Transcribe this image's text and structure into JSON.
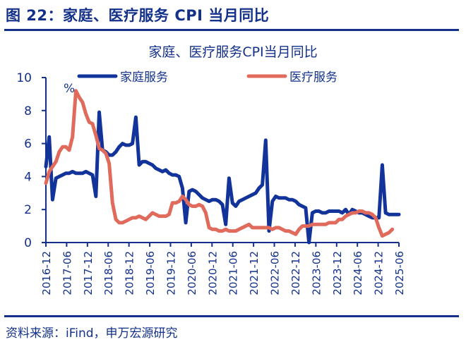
{
  "figure": {
    "title": "图 22：家庭、医疗服务 CPI 当月同比",
    "source": "资料来源：iFind，申万宏源研究"
  },
  "colors": {
    "brand": "#13318a",
    "household": "#12339a",
    "medical": "#e06a5c"
  },
  "chart_data": {
    "type": "line",
    "title": "家庭、医疗服务CPI当月同比",
    "xlabel": "",
    "ylabel": "%",
    "ylim": [
      0,
      10
    ],
    "yticks": [
      0,
      2,
      4,
      6,
      8,
      10
    ],
    "grid": false,
    "legend_position": "top",
    "x_start": "2016-12",
    "x_end": "2025-06",
    "frequency": "monthly",
    "xtick_labels": [
      "2016-12",
      "2017-06",
      "2017-12",
      "2018-06",
      "2018-12",
      "2019-06",
      "2019-12",
      "2020-06",
      "2020-12",
      "2021-06",
      "2021-12",
      "2022-06",
      "2022-12",
      "2023-06",
      "2023-12",
      "2024-06",
      "2024-12",
      "2025-06"
    ],
    "series": [
      {
        "name": "家庭服务",
        "color": "#12339a",
        "values": [
          4.6,
          6.4,
          2.6,
          3.9,
          4.0,
          4.1,
          4.2,
          4.2,
          4.3,
          4.2,
          4.2,
          4.2,
          4.3,
          4.2,
          4.1,
          2.8,
          7.9,
          5.6,
          5.5,
          5.3,
          5.3,
          5.5,
          5.8,
          6.0,
          5.9,
          5.9,
          6.0,
          7.6,
          4.7,
          4.9,
          4.9,
          4.8,
          4.7,
          4.5,
          4.4,
          4.3,
          4.4,
          4.2,
          4.1,
          4.1,
          4.0,
          3.3,
          1.2,
          3.1,
          3.2,
          3.1,
          2.9,
          2.7,
          2.6,
          2.5,
          2.6,
          2.6,
          2.5,
          2.3,
          1.1,
          3.9,
          2.4,
          2.2,
          2.5,
          2.6,
          2.7,
          2.8,
          2.9,
          3.0,
          3.3,
          3.5,
          6.2,
          0.7,
          2.5,
          2.8,
          2.7,
          2.7,
          2.7,
          2.6,
          2.6,
          2.5,
          2.3,
          2.2,
          2.1,
          0.0,
          1.8,
          1.9,
          1.9,
          1.8,
          1.8,
          1.9,
          1.9,
          1.9,
          1.9,
          1.8,
          2.0,
          1.7,
          2.0,
          1.9,
          1.8,
          1.8,
          1.7,
          1.6,
          1.5,
          1.5,
          1.5,
          4.7,
          1.8,
          1.7,
          1.7,
          1.7,
          1.7
        ],
        "note": "approximate monthly readings 2016-12 to 2025-06"
      },
      {
        "name": "医疗服务",
        "color": "#e06a5c",
        "values": [
          3.6,
          4.3,
          4.6,
          4.9,
          5.5,
          5.8,
          5.8,
          5.6,
          6.4,
          9.2,
          8.8,
          8.5,
          7.8,
          7.3,
          7.2,
          6.5,
          5.7,
          5.6,
          5.4,
          4.8,
          2.4,
          1.4,
          1.2,
          1.2,
          1.3,
          1.4,
          1.5,
          1.5,
          1.6,
          1.5,
          1.4,
          1.6,
          1.8,
          1.7,
          1.6,
          1.6,
          1.6,
          1.7,
          2.4,
          2.4,
          2.5,
          2.8,
          2.6,
          2.3,
          2.2,
          2.2,
          2.3,
          2.2,
          1.8,
          0.9,
          0.8,
          0.8,
          0.7,
          0.7,
          0.8,
          0.7,
          0.7,
          0.7,
          0.8,
          0.9,
          1.0,
          1.1,
          0.9,
          0.9,
          0.9,
          0.9,
          0.9,
          0.9,
          0.8,
          0.9,
          0.9,
          0.8,
          0.7,
          0.7,
          0.6,
          0.5,
          0.8,
          1.0,
          1.0,
          1.0,
          1.1,
          1.1,
          1.1,
          1.1,
          1.1,
          1.2,
          1.2,
          1.2,
          1.4,
          1.4,
          1.6,
          1.7,
          1.8,
          1.8,
          1.9,
          1.9,
          1.8,
          1.8,
          1.7,
          1.5,
          0.9,
          0.4,
          0.5,
          0.6,
          0.8
        ],
        "note": "approximate monthly readings 2016-12 to 2025-06"
      }
    ]
  }
}
